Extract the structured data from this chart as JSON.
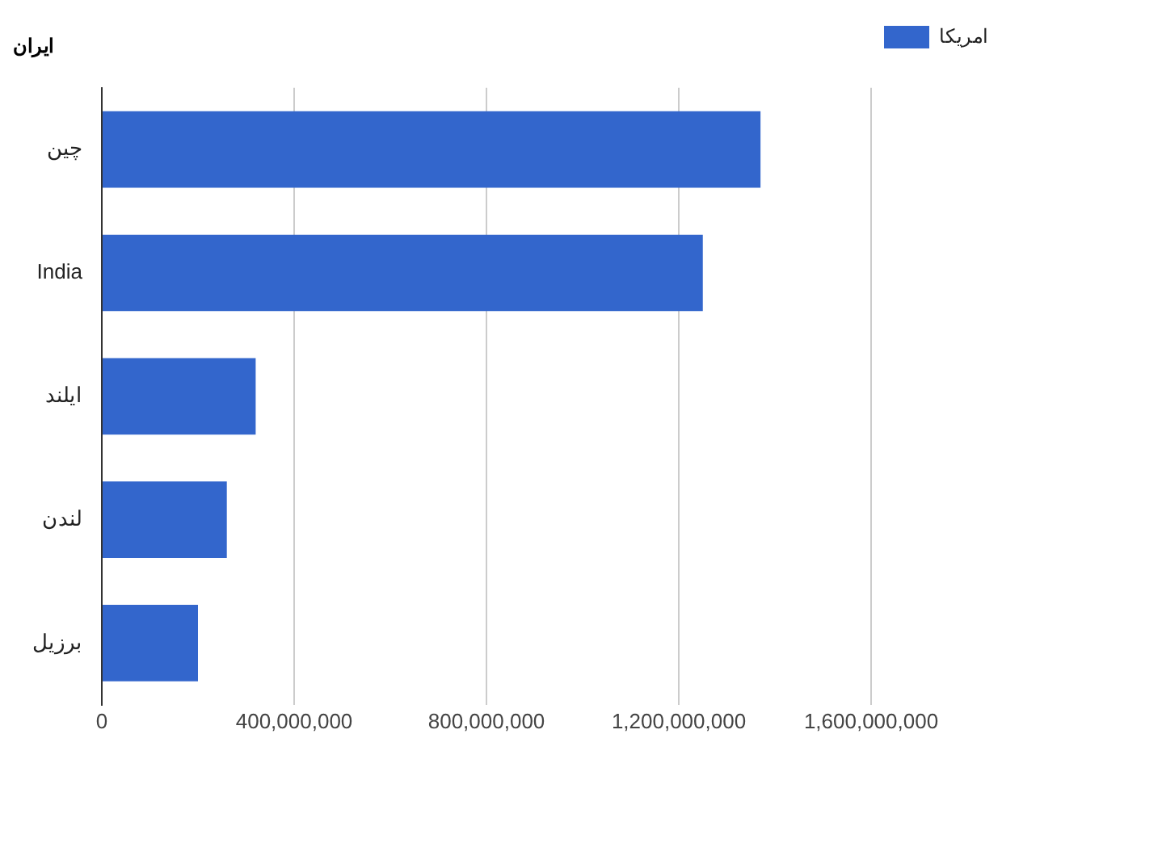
{
  "chart_data": {
    "type": "bar",
    "orientation": "horizontal",
    "title": "ایران",
    "categories": [
      "چین",
      "India",
      "ایلند",
      "لندن",
      "برزیل"
    ],
    "series": [
      {
        "name": "امریکا",
        "color": "#3366cc",
        "values": [
          1370000000,
          1250000000,
          320000000,
          260000000,
          200000000
        ]
      }
    ],
    "xlim": [
      0,
      1600000000
    ],
    "xticks": [
      0,
      {
        "value": 400000000,
        "label": "400,000,000"
      },
      {
        "value": 800000000,
        "label": "800,000,000"
      },
      {
        "value": 1200000000,
        "label": "1,200,000,000"
      },
      {
        "value": 1600000000,
        "label": "1,600,000,000"
      }
    ],
    "grid": "x",
    "legend": "top right"
  }
}
